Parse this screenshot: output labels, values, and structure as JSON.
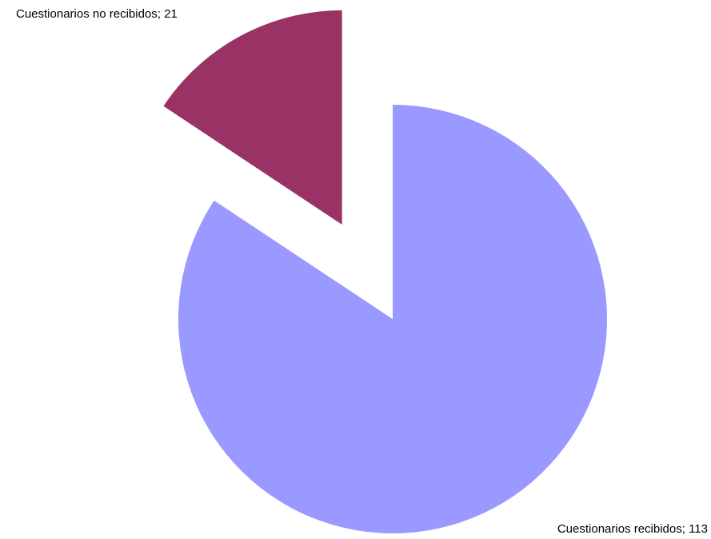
{
  "chart_data": {
    "type": "pie",
    "values": [
      113,
      21
    ],
    "value_labels": [
      "Cuestionarios recibidos; 113",
      "Cuestionarios no recibidos; 21"
    ],
    "colors": [
      "#9999ff",
      "#993366"
    ]
  }
}
